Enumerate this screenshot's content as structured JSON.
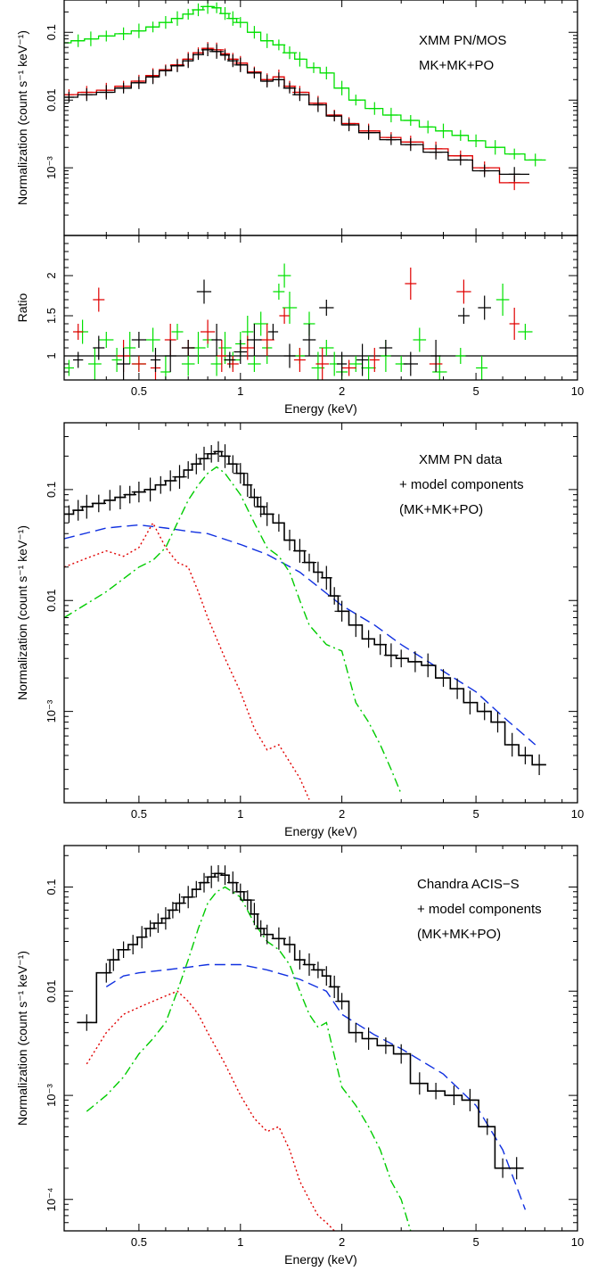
{
  "chart_data": [
    {
      "id": "p1",
      "type": "scatter",
      "xscale": "log",
      "yscale": "log",
      "xlim": [
        0.3,
        10
      ],
      "ylim": [
        0.0001,
        0.3
      ],
      "ylabel": "Normalization (count s⁻¹ keV⁻¹)",
      "xlabel": "",
      "yticks": [
        {
          "v": 0.1,
          "label": "0.1"
        },
        {
          "v": 0.01,
          "label": "0.01"
        },
        {
          "v": 0.001,
          "label": "10⁻³"
        }
      ],
      "annotations": [
        "XMM PN/MOS",
        "MK+MK+PO"
      ],
      "series": [
        {
          "color": "#00e000",
          "x": [
            0.3,
            0.33,
            0.36,
            0.4,
            0.45,
            0.5,
            0.55,
            0.6,
            0.65,
            0.7,
            0.75,
            0.8,
            0.85,
            0.9,
            0.95,
            1.0,
            1.1,
            1.2,
            1.3,
            1.4,
            1.5,
            1.65,
            1.8,
            2.0,
            2.2,
            2.5,
            2.8,
            3.2,
            3.6,
            4.0,
            4.5,
            5.0,
            5.7,
            6.5,
            7.5
          ],
          "y": [
            0.07,
            0.075,
            0.08,
            0.088,
            0.095,
            0.105,
            0.12,
            0.14,
            0.16,
            0.185,
            0.215,
            0.24,
            0.23,
            0.19,
            0.16,
            0.14,
            0.1,
            0.075,
            0.065,
            0.05,
            0.04,
            0.03,
            0.025,
            0.015,
            0.01,
            0.0075,
            0.006,
            0.005,
            0.004,
            0.0035,
            0.003,
            0.0025,
            0.002,
            0.0016,
            0.0013
          ]
        },
        {
          "color": "#e00000",
          "x": [
            0.31,
            0.35,
            0.4,
            0.45,
            0.5,
            0.55,
            0.6,
            0.65,
            0.7,
            0.75,
            0.8,
            0.85,
            0.9,
            0.95,
            1.0,
            1.1,
            1.2,
            1.3,
            1.4,
            1.5,
            1.7,
            1.9,
            2.1,
            2.4,
            2.8,
            3.2,
            3.8,
            4.5,
            5.3,
            6.5
          ],
          "y": [
            0.012,
            0.013,
            0.014,
            0.016,
            0.019,
            0.023,
            0.028,
            0.033,
            0.04,
            0.05,
            0.058,
            0.055,
            0.048,
            0.04,
            0.035,
            0.026,
            0.02,
            0.022,
            0.016,
            0.013,
            0.009,
            0.006,
            0.0045,
            0.0035,
            0.0028,
            0.0024,
            0.0019,
            0.0015,
            0.001,
            0.0006
          ]
        },
        {
          "color": "#000000",
          "x": [
            0.31,
            0.35,
            0.4,
            0.45,
            0.5,
            0.55,
            0.6,
            0.65,
            0.7,
            0.75,
            0.8,
            0.85,
            0.9,
            0.95,
            1.0,
            1.1,
            1.2,
            1.3,
            1.4,
            1.5,
            1.7,
            1.9,
            2.1,
            2.4,
            2.8,
            3.2,
            3.8,
            4.5,
            5.3,
            6.5
          ],
          "y": [
            0.011,
            0.012,
            0.013,
            0.015,
            0.018,
            0.022,
            0.027,
            0.032,
            0.038,
            0.047,
            0.055,
            0.052,
            0.046,
            0.038,
            0.033,
            0.025,
            0.019,
            0.02,
            0.015,
            0.012,
            0.0085,
            0.0058,
            0.0043,
            0.0033,
            0.0026,
            0.0022,
            0.0017,
            0.0013,
            0.0009,
            0.0008
          ]
        }
      ]
    },
    {
      "id": "p2",
      "type": "scatter",
      "xscale": "log",
      "yscale": "linear",
      "xlim": [
        0.3,
        10
      ],
      "ylim": [
        0.7,
        2.5
      ],
      "ylabel": "Ratio",
      "xlabel": "Energy (keV)",
      "xticks": [
        {
          "v": 0.5,
          "label": "0.5"
        },
        {
          "v": 1,
          "label": "1"
        },
        {
          "v": 2,
          "label": "2"
        },
        {
          "v": 5,
          "label": "5"
        },
        {
          "v": 10,
          "label": "10"
        }
      ],
      "yticks": [
        {
          "v": 1,
          "label": "1"
        },
        {
          "v": 1.5,
          "label": "1.5"
        },
        {
          "v": 2,
          "label": "2"
        }
      ],
      "reference_line": 1,
      "series": [
        {
          "color": "#00e000",
          "x": [
            0.31,
            0.34,
            0.37,
            0.4,
            0.43,
            0.47,
            0.5,
            0.55,
            0.6,
            0.65,
            0.7,
            0.75,
            0.8,
            0.85,
            0.9,
            0.95,
            1.0,
            1.05,
            1.1,
            1.15,
            1.2,
            1.3,
            1.35,
            1.4,
            1.5,
            1.6,
            1.7,
            1.8,
            1.9,
            2.0,
            2.2,
            2.4,
            2.7,
            3.0,
            3.4,
            3.9,
            4.5,
            5.2,
            6.0,
            7.0
          ],
          "y": [
            0.85,
            1.3,
            0.9,
            1.2,
            0.95,
            1.1,
            0.9,
            1.2,
            0.8,
            1.3,
            0.9,
            1.1,
            1.2,
            0.9,
            1.1,
            0.95,
            1.15,
            1.3,
            0.9,
            1.4,
            1.1,
            1.8,
            2.0,
            1.6,
            1.0,
            1.4,
            0.85,
            1.1,
            0.9,
            0.8,
            0.9,
            0.85,
            1.0,
            0.9,
            1.2,
            0.8,
            1.0,
            0.85,
            1.7,
            1.3
          ]
        },
        {
          "color": "#e00000",
          "x": [
            0.33,
            0.38,
            0.45,
            0.5,
            0.56,
            0.62,
            0.7,
            0.8,
            0.88,
            0.95,
            1.05,
            1.2,
            1.35,
            1.5,
            1.75,
            2.1,
            2.5,
            3.2,
            3.8,
            4.6,
            6.5
          ],
          "y": [
            1.3,
            1.7,
            1.0,
            0.9,
            0.85,
            1.2,
            1.1,
            1.3,
            1.0,
            0.9,
            1.1,
            1.2,
            1.5,
            0.95,
            0.9,
            0.85,
            0.95,
            1.9,
            0.9,
            1.8,
            1.4
          ]
        },
        {
          "color": "#000000",
          "x": [
            0.33,
            0.38,
            0.45,
            0.5,
            0.56,
            0.62,
            0.7,
            0.78,
            0.85,
            0.93,
            1.0,
            1.1,
            1.25,
            1.4,
            1.6,
            1.8,
            2.0,
            2.3,
            2.7,
            3.2,
            3.8,
            4.6,
            5.3
          ],
          "y": [
            0.95,
            1.1,
            0.9,
            1.2,
            0.95,
            1.0,
            1.1,
            1.8,
            1.2,
            0.95,
            1.05,
            1.2,
            1.3,
            1.0,
            1.2,
            1.6,
            0.9,
            0.95,
            1.1,
            0.9,
            1.0,
            1.5,
            1.6
          ]
        }
      ]
    },
    {
      "id": "p3",
      "type": "line",
      "xscale": "log",
      "yscale": "log",
      "xlim": [
        0.3,
        10
      ],
      "ylim": [
        0.00015,
        0.4
      ],
      "ylabel": "Normalization (count s⁻¹ keV⁻¹)",
      "xlabel": "Energy (keV)",
      "xticks": [
        {
          "v": 0.5,
          "label": "0.5"
        },
        {
          "v": 1,
          "label": "1"
        },
        {
          "v": 2,
          "label": "2"
        },
        {
          "v": 5,
          "label": "5"
        },
        {
          "v": 10,
          "label": "10"
        }
      ],
      "yticks": [
        {
          "v": 0.1,
          "label": "0.1"
        },
        {
          "v": 0.01,
          "label": "0.01"
        },
        {
          "v": 0.001,
          "label": "10⁻³"
        }
      ],
      "annotations": [
        "XMM PN data",
        "+ model components",
        "(MK+MK+PO)"
      ],
      "data": {
        "color": "#000000",
        "x": [
          0.31,
          0.33,
          0.35,
          0.38,
          0.41,
          0.44,
          0.47,
          0.5,
          0.54,
          0.58,
          0.62,
          0.66,
          0.7,
          0.74,
          0.78,
          0.82,
          0.86,
          0.9,
          0.95,
          1.0,
          1.05,
          1.1,
          1.15,
          1.2,
          1.3,
          1.4,
          1.5,
          1.6,
          1.7,
          1.8,
          1.9,
          2.0,
          2.2,
          2.4,
          2.6,
          2.8,
          3.0,
          3.3,
          3.6,
          4.0,
          4.4,
          4.8,
          5.3,
          5.8,
          6.4,
          7.0,
          7.7
        ],
        "y": [
          0.06,
          0.065,
          0.07,
          0.075,
          0.08,
          0.085,
          0.09,
          0.095,
          0.1,
          0.11,
          0.12,
          0.13,
          0.15,
          0.17,
          0.19,
          0.21,
          0.22,
          0.2,
          0.17,
          0.14,
          0.11,
          0.085,
          0.07,
          0.06,
          0.05,
          0.035,
          0.028,
          0.022,
          0.018,
          0.016,
          0.011,
          0.008,
          0.006,
          0.0045,
          0.004,
          0.0032,
          0.003,
          0.0028,
          0.0026,
          0.002,
          0.0016,
          0.0012,
          0.001,
          0.0008,
          0.0005,
          0.0004,
          0.00033
        ]
      },
      "components": [
        {
          "color": "#1030e0",
          "dash": "dash",
          "x": [
            0.3,
            0.4,
            0.5,
            0.6,
            0.7,
            0.8,
            1.0,
            1.2,
            1.5,
            2.0,
            2.5,
            3.0,
            4.0,
            5.0,
            6.0,
            7.5
          ],
          "y": [
            0.036,
            0.045,
            0.048,
            0.045,
            0.042,
            0.04,
            0.032,
            0.026,
            0.018,
            0.009,
            0.006,
            0.004,
            0.0023,
            0.0015,
            0.0009,
            0.0005
          ]
        },
        {
          "color": "#e00000",
          "dash": "dot",
          "x": [
            0.3,
            0.35,
            0.4,
            0.45,
            0.5,
            0.55,
            0.6,
            0.65,
            0.7,
            0.75,
            0.8,
            0.9,
            1.0,
            1.1,
            1.2,
            1.3,
            1.4,
            1.5,
            1.6
          ],
          "y": [
            0.02,
            0.024,
            0.028,
            0.025,
            0.03,
            0.05,
            0.03,
            0.022,
            0.02,
            0.012,
            0.007,
            0.003,
            0.0015,
            0.0007,
            0.00045,
            0.0005,
            0.00035,
            0.00025,
            0.00016
          ]
        },
        {
          "color": "#00cc00",
          "dash": "dashdot",
          "x": [
            0.3,
            0.4,
            0.5,
            0.55,
            0.6,
            0.65,
            0.7,
            0.75,
            0.8,
            0.85,
            0.9,
            1.0,
            1.1,
            1.2,
            1.3,
            1.4,
            1.5,
            1.6,
            1.8,
            2.0,
            2.2,
            2.4,
            2.6,
            2.8,
            3.0
          ],
          "y": [
            0.007,
            0.012,
            0.02,
            0.023,
            0.03,
            0.05,
            0.08,
            0.11,
            0.14,
            0.16,
            0.14,
            0.09,
            0.05,
            0.03,
            0.025,
            0.018,
            0.01,
            0.006,
            0.004,
            0.0035,
            0.0012,
            0.0008,
            0.0005,
            0.0003,
            0.00018
          ]
        }
      ]
    },
    {
      "id": "p4",
      "type": "line",
      "xscale": "log",
      "yscale": "log",
      "xlim": [
        0.3,
        10
      ],
      "ylim": [
        5e-05,
        0.25
      ],
      "ylabel": "Normalization (count s⁻¹ keV⁻¹)",
      "xlabel": "Energy (keV)",
      "xticks": [
        {
          "v": 0.5,
          "label": "0.5"
        },
        {
          "v": 1,
          "label": "1"
        },
        {
          "v": 2,
          "label": "2"
        },
        {
          "v": 5,
          "label": "5"
        },
        {
          "v": 10,
          "label": "10"
        }
      ],
      "yticks": [
        {
          "v": 0.1,
          "label": "0.1"
        },
        {
          "v": 0.01,
          "label": "0.01"
        },
        {
          "v": 0.001,
          "label": "10⁻³"
        },
        {
          "v": 0.0001,
          "label": "10⁻⁴"
        }
      ],
      "annotations": [
        "Chandra ACIS−S",
        "+ model components",
        "(MK+MK+PO)"
      ],
      "data": {
        "color": "#000000",
        "x": [
          0.35,
          0.4,
          0.42,
          0.45,
          0.48,
          0.51,
          0.54,
          0.57,
          0.6,
          0.63,
          0.66,
          0.7,
          0.74,
          0.78,
          0.82,
          0.86,
          0.9,
          0.95,
          1.0,
          1.05,
          1.1,
          1.15,
          1.2,
          1.3,
          1.4,
          1.5,
          1.6,
          1.7,
          1.8,
          1.9,
          2.0,
          2.2,
          2.4,
          2.7,
          3.0,
          3.4,
          3.8,
          4.3,
          4.8,
          5.4,
          6.0,
          6.6
        ],
        "y": [
          0.005,
          0.015,
          0.02,
          0.025,
          0.028,
          0.033,
          0.04,
          0.045,
          0.05,
          0.06,
          0.07,
          0.08,
          0.095,
          0.11,
          0.125,
          0.135,
          0.13,
          0.11,
          0.09,
          0.075,
          0.055,
          0.04,
          0.035,
          0.032,
          0.028,
          0.02,
          0.018,
          0.016,
          0.014,
          0.011,
          0.008,
          0.004,
          0.0035,
          0.003,
          0.0025,
          0.0013,
          0.0011,
          0.001,
          0.0009,
          0.0005,
          0.0002,
          0.0002
        ]
      },
      "components": [
        {
          "color": "#1030e0",
          "dash": "dash",
          "x": [
            0.4,
            0.45,
            0.5,
            0.6,
            0.7,
            0.8,
            0.9,
            1.0,
            1.2,
            1.5,
            1.8,
            2.0,
            2.5,
            3.0,
            4.0,
            5.0,
            6.0,
            7.0
          ],
          "y": [
            0.011,
            0.014,
            0.015,
            0.016,
            0.017,
            0.018,
            0.018,
            0.018,
            0.016,
            0.013,
            0.01,
            0.006,
            0.0038,
            0.0028,
            0.0016,
            0.0008,
            0.0003,
            8e-05
          ]
        },
        {
          "color": "#e00000",
          "dash": "dot",
          "x": [
            0.35,
            0.4,
            0.45,
            0.5,
            0.55,
            0.6,
            0.65,
            0.7,
            0.75,
            0.8,
            0.9,
            1.0,
            1.1,
            1.2,
            1.3,
            1.4,
            1.5,
            1.6,
            1.7,
            1.8,
            1.9
          ],
          "y": [
            0.002,
            0.004,
            0.006,
            0.007,
            0.008,
            0.009,
            0.01,
            0.008,
            0.006,
            0.004,
            0.002,
            0.001,
            0.0006,
            0.00045,
            0.0005,
            0.0003,
            0.00015,
            0.0001,
            7e-05,
            6e-05,
            5e-05
          ]
        },
        {
          "color": "#00cc00",
          "dash": "dashdot",
          "x": [
            0.35,
            0.4,
            0.45,
            0.5,
            0.55,
            0.6,
            0.65,
            0.7,
            0.75,
            0.8,
            0.85,
            0.9,
            1.0,
            1.1,
            1.2,
            1.3,
            1.4,
            1.5,
            1.6,
            1.7,
            1.8,
            2.0,
            2.2,
            2.4,
            2.6,
            2.8,
            3.0,
            3.2
          ],
          "y": [
            0.0007,
            0.001,
            0.0015,
            0.0025,
            0.0035,
            0.005,
            0.01,
            0.02,
            0.04,
            0.07,
            0.09,
            0.1,
            0.08,
            0.045,
            0.03,
            0.025,
            0.018,
            0.01,
            0.006,
            0.0045,
            0.005,
            0.0012,
            0.0008,
            0.0005,
            0.0003,
            0.00015,
            0.0001,
            5e-05
          ]
        }
      ]
    }
  ]
}
